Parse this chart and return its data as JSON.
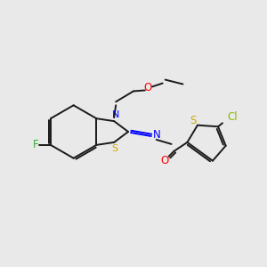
{
  "background_color": "#e9e9e9",
  "bond_color": "#1a1a1a",
  "atom_colors": {
    "N": "#0000ff",
    "S": "#ccaa00",
    "O": "#ff0000",
    "F": "#33aa33",
    "Cl": "#88bb00"
  },
  "figsize": [
    3.0,
    3.0
  ],
  "dpi": 100,
  "lw": 1.4
}
